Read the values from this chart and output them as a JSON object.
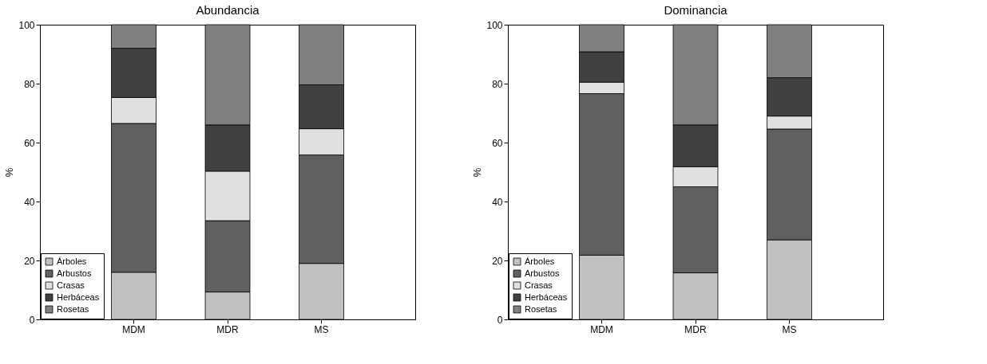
{
  "chart_data": [
    {
      "type": "bar",
      "title": "Abundancia",
      "ylabel": "%",
      "stacked": true,
      "categories": [
        "MDM",
        "MDR",
        "MS"
      ],
      "ylim": [
        0,
        100
      ],
      "yticks": [
        0,
        20,
        40,
        60,
        80,
        100
      ],
      "grid": false,
      "legend": "bottom left",
      "series": [
        {
          "name": "Árboles",
          "color": "#c0c0c0",
          "values": [
            16,
            9.3,
            19
          ]
        },
        {
          "name": "Arbustos",
          "color": "#606060",
          "values": [
            50.5,
            24.2,
            36.8
          ]
        },
        {
          "name": "Crasas",
          "color": "#e0e0e0",
          "values": [
            8.8,
            16.8,
            8.9
          ]
        },
        {
          "name": "Herbáceas",
          "color": "#404040",
          "values": [
            16.7,
            15.7,
            14.9
          ]
        },
        {
          "name": "Rosetas",
          "color": "#808080",
          "values": [
            8,
            34,
            20.4
          ]
        }
      ]
    },
    {
      "type": "bar",
      "title": "Dominancia",
      "ylabel": "%",
      "stacked": true,
      "categories": [
        "MDM",
        "MDR",
        "MS"
      ],
      "ylim": [
        0,
        100
      ],
      "yticks": [
        0,
        20,
        40,
        60,
        80,
        100
      ],
      "grid": false,
      "legend": "bottom left",
      "series": [
        {
          "name": "Árboles",
          "color": "#c0c0c0",
          "values": [
            21.8,
            15.8,
            27
          ]
        },
        {
          "name": "Arbustos",
          "color": "#606060",
          "values": [
            54.8,
            29.2,
            37.6
          ]
        },
        {
          "name": "Crasas",
          "color": "#e0e0e0",
          "values": [
            3.9,
            6.8,
            4.4
          ]
        },
        {
          "name": "Herbáceas",
          "color": "#404040",
          "values": [
            10.3,
            14.2,
            13
          ]
        },
        {
          "name": "Rosetas",
          "color": "#808080",
          "values": [
            9.2,
            34,
            18
          ]
        }
      ]
    }
  ]
}
